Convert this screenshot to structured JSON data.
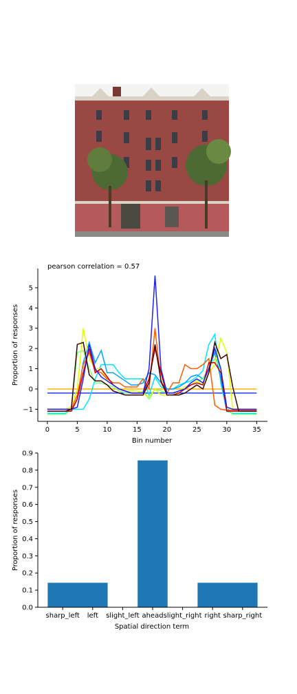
{
  "chart_data": [
    {
      "type": "line",
      "title": "pearson correlation = 0.57",
      "xlabel": "Bin number",
      "ylabel": "Proportion of responses",
      "x": [
        0,
        1,
        2,
        3,
        4,
        5,
        6,
        7,
        8,
        9,
        10,
        11,
        12,
        13,
        14,
        15,
        16,
        17,
        18,
        19,
        20,
        21,
        22,
        23,
        24,
        25,
        26,
        27,
        28,
        29,
        30,
        31,
        32,
        33,
        34,
        35
      ],
      "series": [
        {
          "color": "#1f3fff",
          "values": [
            -0.2,
            -0.2,
            -0.2,
            -0.2,
            -0.2,
            -0.2,
            -0.2,
            -0.2,
            -0.2,
            -0.2,
            -0.2,
            -0.2,
            -0.2,
            -0.2,
            -0.2,
            -0.2,
            -0.2,
            -0.2,
            -0.2,
            -0.2,
            -0.2,
            -0.2,
            -0.2,
            -0.2,
            -0.2,
            -0.2,
            -0.2,
            -0.2,
            -0.2,
            -0.2,
            -0.2,
            -0.2,
            -0.2,
            -0.2,
            -0.2,
            -0.2
          ]
        },
        {
          "color": "#ffb000",
          "values": [
            0,
            0,
            0,
            0,
            0,
            0,
            0,
            0,
            0,
            0,
            0,
            0,
            0,
            0,
            0,
            0,
            0,
            0,
            0,
            0,
            0,
            0,
            0,
            0,
            0,
            0,
            0,
            0,
            0,
            0,
            0,
            0,
            0,
            0,
            0,
            0
          ]
        },
        {
          "color": "#00e5ff",
          "values": [
            -1.2,
            -1.2,
            -1.2,
            -1.2,
            -1.0,
            -1.0,
            -1.0,
            -0.5,
            0.5,
            1.2,
            1.2,
            1.2,
            0.8,
            0.5,
            0.5,
            0.5,
            0.5,
            -0.3,
            0.6,
            0.1,
            0.0,
            0.0,
            0.2,
            0.3,
            0.4,
            0.6,
            0.9,
            2.2,
            2.7,
            0.3,
            -1.1,
            -1.2,
            -1.2,
            -1.2,
            -1.2,
            -1.2
          ]
        },
        {
          "color": "#00a0ff",
          "values": [
            -1.1,
            -1.1,
            -1.1,
            -1.1,
            -1.1,
            -0.5,
            1.3,
            2.3,
            1.3,
            1.9,
            0.8,
            0.8,
            0.6,
            0.4,
            0.2,
            0.2,
            0.3,
            0.8,
            0.7,
            0.3,
            0.0,
            0.0,
            0.1,
            0.3,
            0.6,
            0.7,
            0.5,
            1.0,
            1.8,
            0.5,
            -1.0,
            -1.1,
            -1.1,
            -1.1,
            -1.1,
            -1.1
          ]
        },
        {
          "color": "#7dff7a",
          "values": [
            -1.25,
            -1.25,
            -1.25,
            -1.25,
            -1.0,
            1.8,
            1.9,
            1.0,
            0.3,
            0.3,
            0.2,
            0.1,
            -0.1,
            -0.2,
            -0.2,
            -0.2,
            -0.1,
            -0.5,
            0.0,
            -0.1,
            -0.2,
            -0.2,
            -0.1,
            0.0,
            0.2,
            0.4,
            0.5,
            1.0,
            1.5,
            1.0,
            -1.0,
            -1.25,
            -1.25,
            -1.25,
            -1.25,
            -1.25
          ]
        },
        {
          "color": "#e0ff00",
          "values": [
            -1.0,
            -1.0,
            -1.0,
            -1.0,
            -0.9,
            0.0,
            3.0,
            1.5,
            1.0,
            1.0,
            0.4,
            0.2,
            0.0,
            -0.1,
            -0.1,
            -0.1,
            -0.2,
            -0.4,
            0.0,
            -0.3,
            -0.3,
            -0.3,
            -0.1,
            0.1,
            0.2,
            0.4,
            0.2,
            0.8,
            1.2,
            2.5,
            1.8,
            -1.0,
            -1.0,
            -1.0,
            -1.0,
            -1.0
          ]
        },
        {
          "color": "#ff5a00",
          "values": [
            -1.0,
            -1.0,
            -1.0,
            -1.0,
            -1.0,
            -0.3,
            1.2,
            1.8,
            0.9,
            0.8,
            0.5,
            0.3,
            0.3,
            0.1,
            0.1,
            0.1,
            0.5,
            0.0,
            3.0,
            0.3,
            -0.2,
            0.3,
            0.3,
            1.2,
            1.0,
            1.0,
            1.2,
            1.5,
            -0.8,
            -1.0,
            -1.05,
            -1.05,
            -1.05,
            -1.05,
            -1.05,
            -1.05
          ]
        },
        {
          "color": "#cc0000",
          "values": [
            -1.1,
            -1.1,
            -1.1,
            -1.1,
            -1.1,
            -0.5,
            0.8,
            2.0,
            0.8,
            1.0,
            0.6,
            0.2,
            0.0,
            -0.1,
            -0.2,
            -0.2,
            -0.2,
            0.5,
            2.0,
            0.8,
            -0.3,
            -0.3,
            -0.2,
            0.0,
            0.2,
            0.3,
            0.2,
            1.3,
            1.3,
            0.8,
            -1.1,
            -1.1,
            -1.1,
            -1.1,
            -1.1,
            -1.1
          ]
        },
        {
          "color": "#1e1eff",
          "values": [
            -1.0,
            -1.0,
            -1.0,
            -1.0,
            -1.0,
            -0.9,
            0.5,
            2.2,
            1.0,
            0.6,
            0.4,
            0.2,
            0.0,
            -0.1,
            -0.2,
            -0.2,
            -0.2,
            1.0,
            5.6,
            1.0,
            -0.2,
            -0.2,
            -0.1,
            0.0,
            0.3,
            0.5,
            0.3,
            1.0,
            2.0,
            1.0,
            -0.9,
            -1.0,
            -1.0,
            -1.0,
            -1.0,
            -1.0
          ]
        },
        {
          "color": "#3d0000",
          "values": [
            -1.1,
            -1.1,
            -1.1,
            -1.1,
            -1.0,
            2.2,
            2.3,
            0.7,
            0.4,
            0.4,
            0.2,
            -0.1,
            -0.2,
            -0.3,
            -0.3,
            -0.3,
            -0.3,
            0.3,
            2.2,
            0.4,
            -0.3,
            -0.3,
            -0.3,
            -0.2,
            0.0,
            0.2,
            0.0,
            0.8,
            2.3,
            1.5,
            1.7,
            0.1,
            -1.1,
            -1.1,
            -1.1,
            -1.1
          ]
        }
      ],
      "xlim": [
        -1.6,
        36.8
      ],
      "xticks": [
        0,
        5,
        10,
        15,
        20,
        25,
        30,
        35
      ],
      "ylim": [
        -1.6,
        5.95
      ],
      "yticks": [
        {
          "value": -1,
          "label": "−1"
        },
        0,
        1,
        2,
        3,
        4,
        5
      ]
    },
    {
      "type": "bar",
      "xlabel": "Spatial direction term",
      "ylabel": "Proportion of responses",
      "categories": [
        "sharp_left",
        "left",
        "slight_left",
        "ahead",
        "slight_right",
        "right",
        "sharp_right"
      ],
      "values": [
        0.143,
        0.143,
        0,
        0.857,
        0,
        0.143,
        0.143
      ],
      "color": "#1f77b4",
      "ylim": [
        0,
        0.9
      ],
      "yticks": [
        {
          "value": 0,
          "label": "0.0"
        },
        0.1,
        0.2,
        0.3,
        0.4,
        0.5,
        0.6,
        0.7,
        0.8,
        0.9
      ]
    }
  ]
}
